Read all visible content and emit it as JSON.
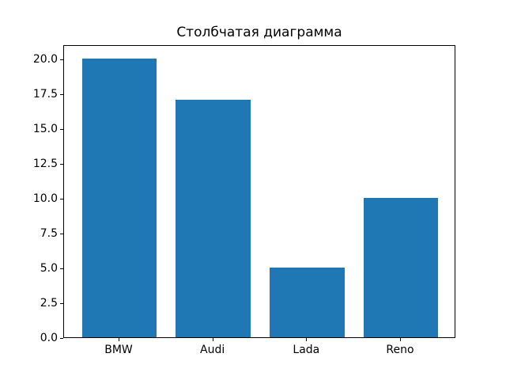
{
  "figure": {
    "background_color": "#ffffff",
    "bar_color": "#1f77b4",
    "axis_color": "#000000",
    "text_color": "#000000"
  },
  "chart_data": {
    "type": "bar",
    "title": "Столбчатая диаграмма",
    "categories": [
      "BMW",
      "Audi",
      "Lada",
      "Reno"
    ],
    "values": [
      20,
      17,
      5,
      10
    ],
    "xlabel": "",
    "ylabel": "",
    "ylim": [
      0,
      21
    ],
    "xlim": [
      -0.59,
      3.59
    ],
    "yticks": [
      0.0,
      2.5,
      5.0,
      7.5,
      10.0,
      12.5,
      15.0,
      17.5,
      20.0
    ],
    "ytick_labels": [
      "0.0",
      "2.5",
      "5.0",
      "7.5",
      "10.0",
      "12.5",
      "15.0",
      "17.5",
      "20.0"
    ],
    "bar_width_fraction": 0.8,
    "grid": false,
    "legend": null
  }
}
